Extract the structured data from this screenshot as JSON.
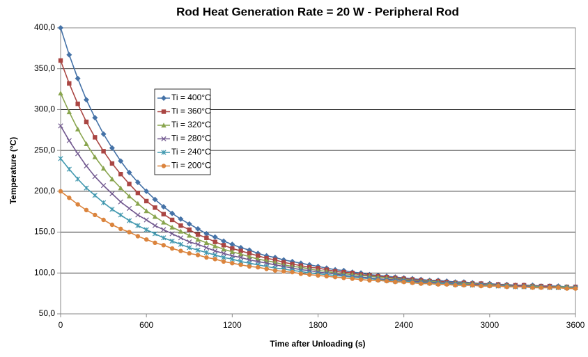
{
  "chart_data": {
    "type": "line",
    "title": "Rod Heat Generation Rate = 20 W - Peripheral Rod",
    "x_label": "Time after Unloading (s)",
    "y_label": "Temperature (°C)",
    "x": [
      0,
      60,
      120,
      180,
      240,
      300,
      360,
      420,
      480,
      540,
      600,
      660,
      720,
      780,
      840,
      900,
      960,
      1020,
      1080,
      1140,
      1200,
      1260,
      1320,
      1380,
      1440,
      1500,
      1560,
      1620,
      1680,
      1740,
      1800,
      1860,
      1920,
      1980,
      2040,
      2100,
      2160,
      2220,
      2280,
      2340,
      2400,
      2460,
      2520,
      2580,
      2640,
      2700,
      2760,
      2820,
      2880,
      2940,
      3000,
      3060,
      3120,
      3180,
      3240,
      3300,
      3360,
      3420,
      3480,
      3540,
      3600
    ],
    "series": [
      {
        "name": "Ti = 400°C",
        "color": "#4572A7",
        "marker": "diamond",
        "values": [
          400,
          367,
          338,
          312,
          290,
          270,
          253,
          237,
          223,
          211,
          200,
          190,
          181,
          173,
          166,
          160,
          154,
          148,
          144,
          139,
          135,
          131,
          128,
          124,
          121,
          119,
          116,
          114,
          112,
          110,
          108,
          106,
          104,
          103,
          101,
          100,
          98,
          97,
          96,
          95,
          94,
          93,
          92,
          91,
          91,
          90,
          89,
          89,
          88,
          87,
          87,
          86,
          86,
          85,
          85,
          85,
          84,
          84,
          84,
          83,
          83
        ]
      },
      {
        "name": "Ti = 360°C",
        "color": "#AA4643",
        "marker": "square",
        "values": [
          360,
          332,
          307,
          285,
          266,
          249,
          234,
          221,
          209,
          198,
          188,
          180,
          172,
          165,
          158,
          153,
          147,
          143,
          138,
          134,
          130,
          127,
          124,
          121,
          118,
          116,
          113,
          111,
          109,
          107,
          106,
          104,
          102,
          101,
          100,
          98,
          97,
          96,
          95,
          94,
          93,
          92,
          91,
          90,
          90,
          89,
          88,
          88,
          87,
          87,
          86,
          86,
          85,
          85,
          85,
          84,
          84,
          84,
          83,
          83,
          83
        ]
      },
      {
        "name": "Ti = 320°C",
        "color": "#89A54E",
        "marker": "triangle",
        "values": [
          320,
          297,
          276,
          258,
          242,
          228,
          215,
          204,
          194,
          185,
          176,
          169,
          162,
          156,
          151,
          146,
          141,
          137,
          133,
          129,
          126,
          123,
          120,
          117,
          115,
          113,
          110,
          108,
          107,
          105,
          103,
          102,
          100,
          99,
          98,
          97,
          96,
          95,
          94,
          93,
          92,
          91,
          90,
          90,
          89,
          88,
          88,
          87,
          87,
          86,
          86,
          85,
          85,
          84,
          84,
          84,
          83,
          83,
          83,
          83,
          82
        ]
      },
      {
        "name": "Ti = 280°C",
        "color": "#71588F",
        "marker": "x",
        "values": [
          280,
          262,
          246,
          231,
          218,
          207,
          197,
          187,
          179,
          171,
          165,
          158,
          153,
          148,
          143,
          138,
          135,
          131,
          127,
          124,
          121,
          119,
          116,
          114,
          112,
          110,
          108,
          106,
          104,
          103,
          101,
          100,
          99,
          97,
          96,
          95,
          94,
          93,
          92,
          92,
          91,
          90,
          89,
          89,
          88,
          88,
          87,
          86,
          86,
          86,
          85,
          85,
          84,
          84,
          84,
          83,
          83,
          83,
          82,
          82,
          82
        ]
      },
      {
        "name": "Ti = 240°C",
        "color": "#4198AF",
        "marker": "star",
        "values": [
          240,
          227,
          215,
          204,
          195,
          186,
          178,
          171,
          164,
          158,
          153,
          148,
          143,
          139,
          135,
          131,
          128,
          125,
          122,
          119,
          117,
          114,
          112,
          110,
          108,
          106,
          105,
          103,
          102,
          100,
          99,
          98,
          97,
          96,
          95,
          94,
          93,
          92,
          91,
          90,
          90,
          89,
          88,
          88,
          87,
          87,
          86,
          86,
          85,
          85,
          85,
          84,
          84,
          83,
          83,
          83,
          83,
          82,
          82,
          82,
          82
        ]
      },
      {
        "name": "Ti = 200°C",
        "color": "#DB843D",
        "marker": "circle",
        "values": [
          200,
          192,
          184,
          177,
          171,
          165,
          159,
          154,
          150,
          145,
          141,
          137,
          134,
          130,
          127,
          124,
          122,
          119,
          117,
          114,
          112,
          110,
          108,
          107,
          105,
          103,
          102,
          101,
          99,
          98,
          97,
          96,
          95,
          94,
          93,
          92,
          91,
          91,
          90,
          89,
          89,
          88,
          87,
          87,
          86,
          86,
          85,
          85,
          85,
          84,
          84,
          84,
          83,
          83,
          83,
          82,
          82,
          82,
          82,
          81,
          81
        ]
      }
    ],
    "xlim": [
      0,
      3600
    ],
    "xticks": [
      0,
      600,
      1200,
      1800,
      2400,
      3000,
      3600
    ],
    "ylim": [
      50,
      400
    ],
    "yticks": [
      {
        "value": 50,
        "label": "50,0"
      },
      {
        "value": 100,
        "label": "100,0"
      },
      {
        "value": 150,
        "label": "150,0"
      },
      {
        "value": 200,
        "label": "200,0"
      },
      {
        "value": 250,
        "label": "250,0"
      },
      {
        "value": 300,
        "label": "300,0"
      },
      {
        "value": 350,
        "label": "350,0"
      },
      {
        "value": 400,
        "label": "400,0"
      }
    ],
    "grid": true,
    "legend": "upper-left"
  }
}
